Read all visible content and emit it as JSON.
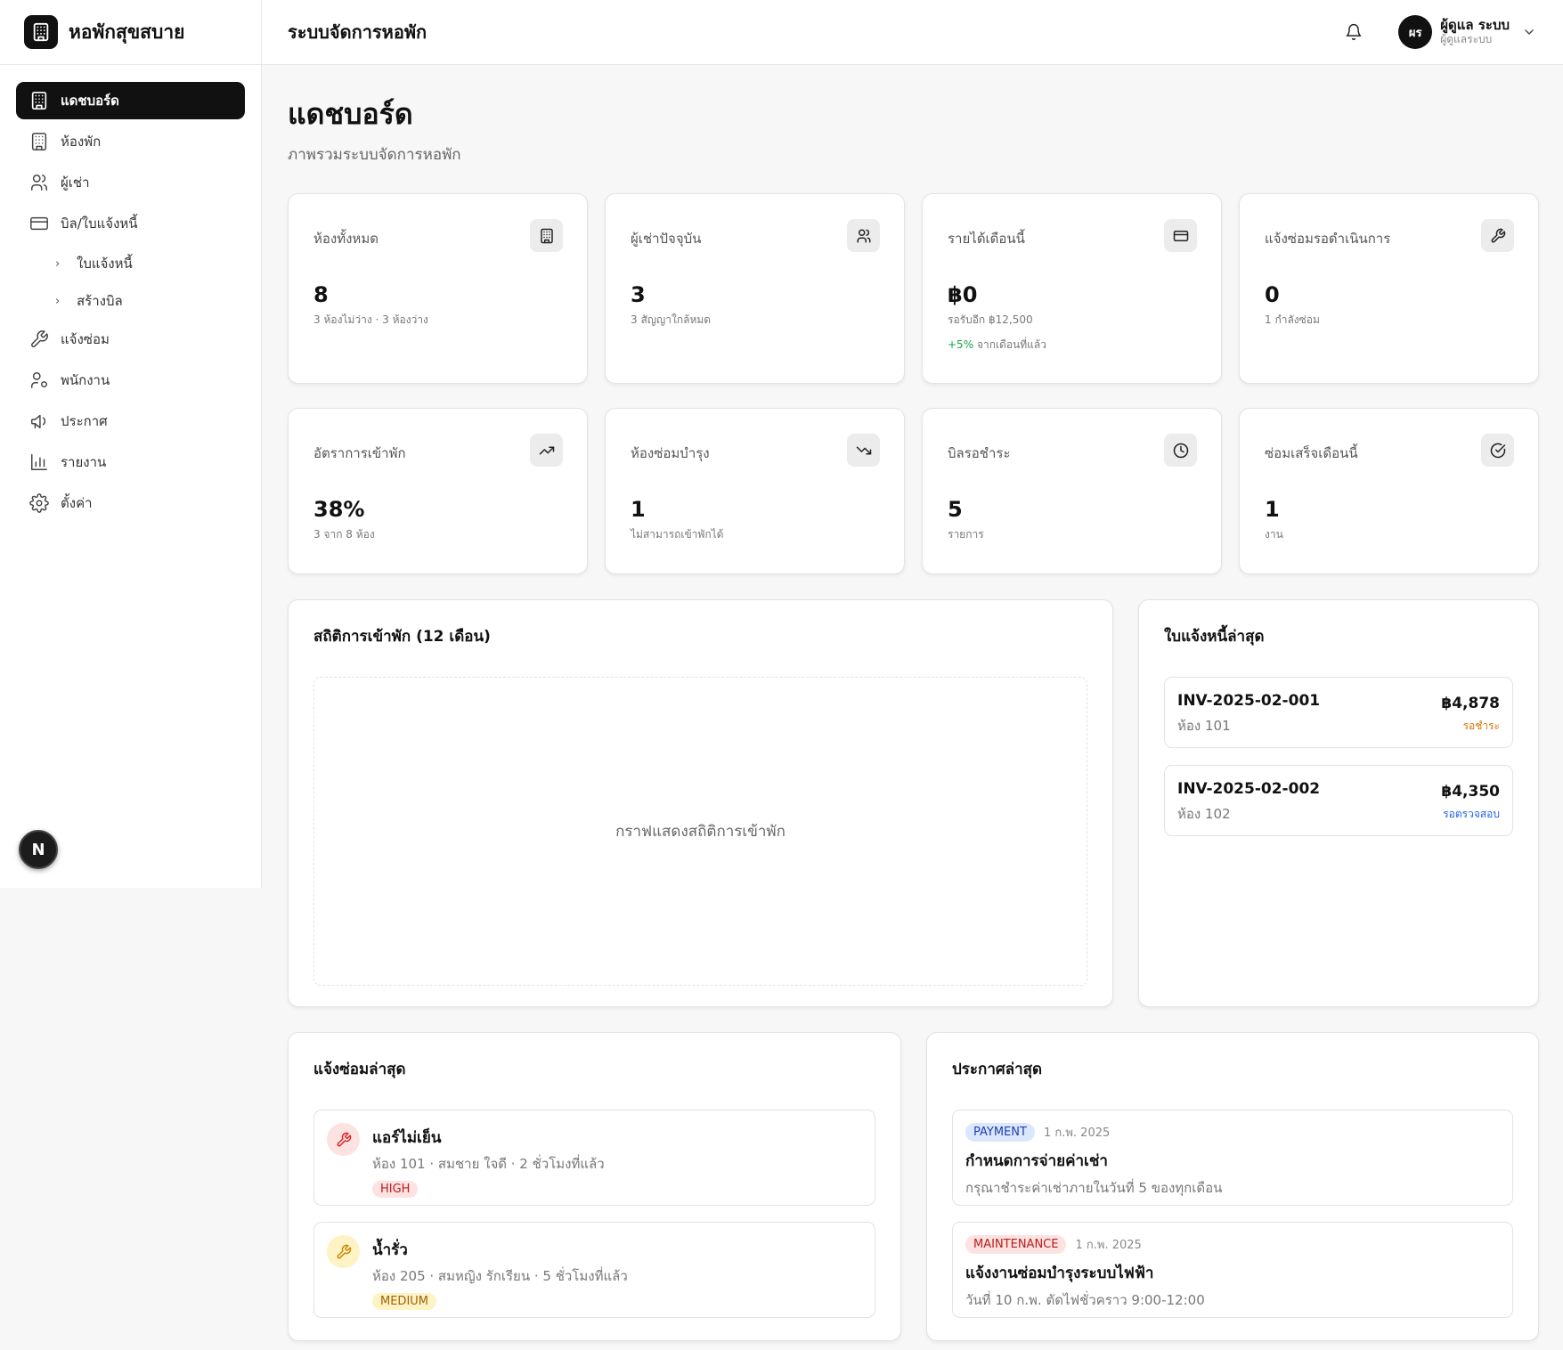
{
  "brand": {
    "name": "หอพักสุขสบาย"
  },
  "header": {
    "title": "ระบบจัดการหอพัก",
    "user": {
      "initials": "ผร",
      "name": "ผู้ดูแล ระบบ",
      "role": "ผู้ดูแลระบบ"
    }
  },
  "sidebar": {
    "items": [
      {
        "label": "แดชบอร์ด",
        "icon": "building-icon",
        "active": true
      },
      {
        "label": "ห้องพัก",
        "icon": "building-icon"
      },
      {
        "label": "ผู้เช่า",
        "icon": "users-icon"
      },
      {
        "label": "บิล/ใบแจ้งหนี้",
        "icon": "credit-card-icon"
      },
      {
        "label": "แจ้งซ่อม",
        "icon": "wrench-icon"
      },
      {
        "label": "พนักงาน",
        "icon": "user-cog-icon"
      },
      {
        "label": "ประกาศ",
        "icon": "megaphone-icon"
      },
      {
        "label": "รายงาน",
        "icon": "bar-chart-icon"
      },
      {
        "label": "ตั้งค่า",
        "icon": "gear-icon"
      }
    ],
    "subitems": [
      {
        "label": "ใบแจ้งหนี้"
      },
      {
        "label": "สร้างบิล"
      }
    ],
    "badge": "N"
  },
  "page": {
    "title": "แดชบอร์ด",
    "subtitle": "ภาพรวมระบบจัดการหอพัก"
  },
  "stats": [
    {
      "label": "ห้องทั้งหมด",
      "value": "8",
      "note": "3 ห้องไม่ว่าง · 3 ห้องว่าง",
      "icon": "building-icon"
    },
    {
      "label": "ผู้เช่าปัจจุบัน",
      "value": "3",
      "note": "3 สัญญาใกล้หมด",
      "icon": "users-icon"
    },
    {
      "label": "รายได้เดือนนี้",
      "value": "฿0",
      "note": "รอรับอีก ฿12,500",
      "trend_value": "+5%",
      "trend_text": "จากเดือนที่แล้ว",
      "icon": "credit-card-icon"
    },
    {
      "label": "แจ้งซ่อมรอดำเนินการ",
      "value": "0",
      "note": "1 กำลังซ่อม",
      "icon": "wrench-icon"
    },
    {
      "label": "อัตราการเข้าพัก",
      "value": "38%",
      "note": "3 จาก 8 ห้อง",
      "icon": "trending-up-icon"
    },
    {
      "label": "ห้องซ่อมบำรุง",
      "value": "1",
      "note": "ไม่สามารถเข้าพักได้",
      "icon": "trending-down-icon"
    },
    {
      "label": "บิลรอชำระ",
      "value": "5",
      "note": "รายการ",
      "icon": "clock-icon"
    },
    {
      "label": "ซ่อมเสร็จเดือนนี้",
      "value": "1",
      "note": "งาน",
      "icon": "check-circle-icon"
    }
  ],
  "chart_panel": {
    "title": "สถิติการเข้าพัก (12 เดือน)",
    "placeholder": "กราฟแสดงสถิติการเข้าพัก"
  },
  "invoices": {
    "title": "ใบแจ้งหนี้ล่าสุด",
    "items": [
      {
        "number": "INV-2025-02-001",
        "room": "ห้อง 101",
        "amount": "฿4,878",
        "status": "รอชำระ",
        "status_color": "#d97706"
      },
      {
        "number": "INV-2025-02-002",
        "room": "ห้อง 102",
        "amount": "฿4,350",
        "status": "รอตรวจสอบ",
        "status_color": "#2563eb"
      }
    ]
  },
  "repairs": {
    "title": "แจ้งซ่อมล่าสุด",
    "items": [
      {
        "title": "แอร์ไม่เย็น",
        "meta": "ห้อง 101 · สมชาย ใจดี · 2 ชั่วโมงที่แล้ว",
        "priority": "HIGH",
        "icon_bg": "#fde2e2",
        "icon_color": "#dc2626",
        "pill_bg": "#fde2e2",
        "pill_color": "#b91c1c"
      },
      {
        "title": "น้ำรั่ว",
        "meta": "ห้อง 205 · สมหญิง รักเรียน · 5 ชั่วโมงที่แล้ว",
        "priority": "MEDIUM",
        "icon_bg": "#fdf3c4",
        "icon_color": "#ca8a04",
        "pill_bg": "#fdf3c4",
        "pill_color": "#a16207"
      }
    ]
  },
  "announcements": {
    "title": "ประกาศล่าสุด",
    "items": [
      {
        "tag": "PAYMENT",
        "date": "1 ก.พ. 2025",
        "title": "กำหนดการจ่ายค่าเช่า",
        "text": "กรุณาชำระค่าเช่าภายในวันที่ 5 ของทุกเดือน",
        "tag_bg": "#dbe7fd",
        "tag_color": "#1e40af"
      },
      {
        "tag": "MAINTENANCE",
        "date": "1 ก.พ. 2025",
        "title": "แจ้งงานซ่อมบำรุงระบบไฟฟ้า",
        "text": "วันที่ 10 ก.พ. ตัดไฟชั่วคราว 9:00-12:00",
        "tag_bg": "#fde2e2",
        "tag_color": "#b91c1c"
      }
    ]
  }
}
